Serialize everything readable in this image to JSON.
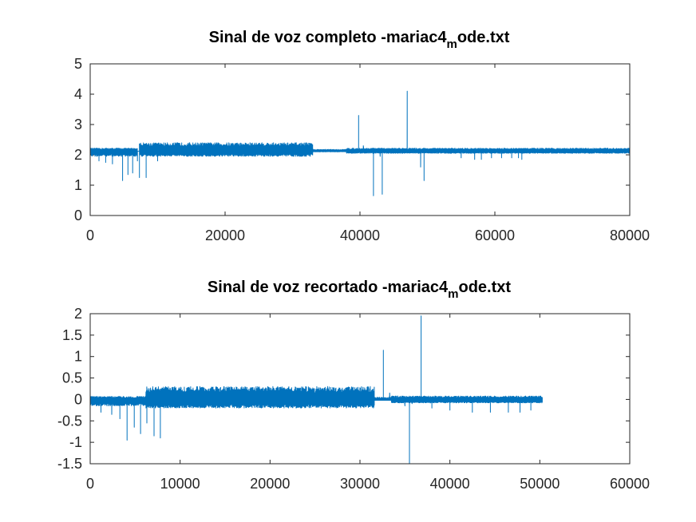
{
  "colors": {
    "series": "#0072bd",
    "axes": "#262626",
    "background": "#ffffff"
  },
  "chart_data": [
    {
      "type": "line",
      "title_main": "Sinal de voz completo -mariac4",
      "title_sub": "m",
      "title_tail": "ode.txt",
      "xlim": [
        0,
        80000
      ],
      "ylim": [
        0,
        5
      ],
      "xticks": [
        0,
        20000,
        40000,
        60000,
        80000
      ],
      "yticks": [
        0,
        1,
        2,
        3,
        4,
        5
      ],
      "grid": false,
      "series": [
        {
          "baseline": 2.12,
          "segments": [
            {
              "x0": 0,
              "x1": 7000,
              "hi": 2.22,
              "lo": 1.95
            },
            {
              "x0": 7300,
              "x1": 33000,
              "hi": 2.4,
              "lo": 1.95
            },
            {
              "x0": 33000,
              "x1": 38000,
              "hi": 2.18,
              "lo": 2.1
            },
            {
              "x0": 38000,
              "x1": 80000,
              "hi": 2.22,
              "lo": 2.05
            }
          ],
          "spikes": [
            {
              "x": 1300,
              "y": 1.8
            },
            {
              "x": 2300,
              "y": 1.75
            },
            {
              "x": 3300,
              "y": 1.7
            },
            {
              "x": 4800,
              "y": 1.15
            },
            {
              "x": 5600,
              "y": 1.35
            },
            {
              "x": 6300,
              "y": 1.4
            },
            {
              "x": 7000,
              "y": 1.8
            },
            {
              "x": 7300,
              "y": 1.25
            },
            {
              "x": 8300,
              "y": 1.25
            },
            {
              "x": 10000,
              "y": 1.8
            },
            {
              "x": 39800,
              "y": 3.3
            },
            {
              "x": 42000,
              "y": 0.65
            },
            {
              "x": 43300,
              "y": 0.7
            },
            {
              "x": 47000,
              "y": 4.1
            },
            {
              "x": 49000,
              "y": 1.6
            },
            {
              "x": 49500,
              "y": 1.15
            },
            {
              "x": 55000,
              "y": 1.9
            },
            {
              "x": 57000,
              "y": 1.85
            },
            {
              "x": 58000,
              "y": 1.85
            },
            {
              "x": 59500,
              "y": 1.9
            },
            {
              "x": 61000,
              "y": 1.9
            },
            {
              "x": 62500,
              "y": 1.9
            },
            {
              "x": 63500,
              "y": 1.9
            },
            {
              "x": 64000,
              "y": 1.85
            }
          ],
          "bumps": [
            {
              "x": 40500,
              "y": 2.3
            },
            {
              "x": 41500,
              "y": 2.1
            },
            {
              "x": 42000,
              "y": 1.85
            },
            {
              "x": 43000,
              "y": 1.95
            },
            {
              "x": 44500,
              "y": 2.15
            }
          ]
        }
      ]
    },
    {
      "type": "line",
      "title_main": "Sinal de voz recortado -mariac4",
      "title_sub": "m",
      "title_tail": "ode.txt",
      "xlim": [
        0,
        60000
      ],
      "ylim": [
        -1.5,
        2
      ],
      "xticks": [
        0,
        10000,
        20000,
        30000,
        40000,
        50000,
        60000
      ],
      "yticks": [
        -1.5,
        -1,
        -0.5,
        0,
        0.5,
        1,
        1.5,
        2
      ],
      "grid": false,
      "series": [
        {
          "baseline": -0.02,
          "segments": [
            {
              "x0": 0,
              "x1": 6200,
              "hi": 0.07,
              "lo": -0.15
            },
            {
              "x0": 6200,
              "x1": 31600,
              "hi": 0.3,
              "lo": -0.2
            },
            {
              "x0": 31600,
              "x1": 33500,
              "hi": 0.05,
              "lo": -0.02
            },
            {
              "x0": 33500,
              "x1": 50300,
              "hi": 0.08,
              "lo": -0.08
            }
          ],
          "spikes": [
            {
              "x": 1200,
              "y": -0.3
            },
            {
              "x": 2400,
              "y": -0.35
            },
            {
              "x": 3300,
              "y": -0.45
            },
            {
              "x": 4100,
              "y": -0.95
            },
            {
              "x": 4900,
              "y": -0.65
            },
            {
              "x": 5600,
              "y": -0.8
            },
            {
              "x": 6300,
              "y": -0.55
            },
            {
              "x": 7100,
              "y": -0.85
            },
            {
              "x": 7800,
              "y": -0.9
            },
            {
              "x": 32600,
              "y": 1.15
            },
            {
              "x": 35500,
              "y": -1.5
            },
            {
              "x": 36800,
              "y": 1.95
            },
            {
              "x": 38000,
              "y": -0.2
            },
            {
              "x": 40000,
              "y": -0.25
            },
            {
              "x": 42500,
              "y": -0.3
            },
            {
              "x": 44500,
              "y": -0.3
            },
            {
              "x": 46500,
              "y": -0.3
            },
            {
              "x": 47800,
              "y": -0.3
            },
            {
              "x": 49000,
              "y": -0.25
            }
          ],
          "bumps": [
            {
              "x": 33300,
              "y": 0.15
            },
            {
              "x": 34200,
              "y": 0.08
            },
            {
              "x": 35000,
              "y": -0.15
            },
            {
              "x": 35800,
              "y": -0.1
            },
            {
              "x": 36500,
              "y": -0.02
            }
          ]
        }
      ]
    }
  ]
}
